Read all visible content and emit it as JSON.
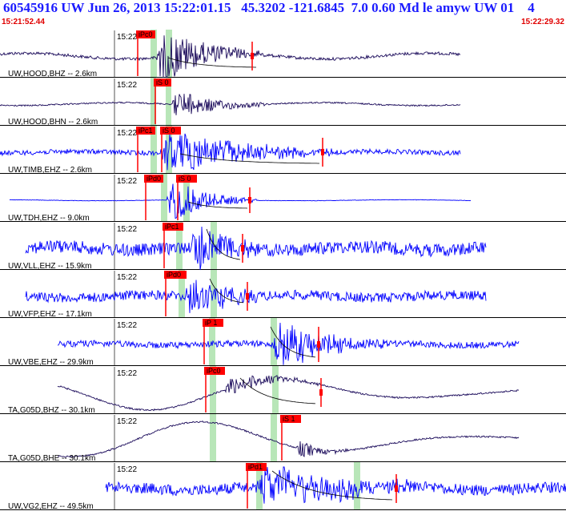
{
  "header": {
    "title": "60545916 UW Jun 26, 2013 15:22:01.15   45.3202 -121.6845  7.0 0.60 Md le amyw UW 01    4",
    "start_time": "15:21:52.44",
    "end_time": "15:22:29.32"
  },
  "colors": {
    "title": "#1a1aff",
    "time": "#e00000",
    "trace_blue": "#0000ff",
    "trace_navy": "#1a0a5a",
    "pick_box": "#ff0000",
    "window": "#b8e6b8"
  },
  "traces": [
    {
      "time_label": "15:22",
      "station_label": "UW,HOOD,BHZ -- 2.6km",
      "color": "navy",
      "picks": [
        {
          "text": "iPc0"
        }
      ]
    },
    {
      "time_label": "15:22",
      "station_label": "UW,HOOD,BHN -- 2.6km",
      "color": "navy",
      "picks": [
        {
          "text": "iS 0"
        }
      ]
    },
    {
      "time_label": "15:22",
      "station_label": "UW,TIMB,EHZ -- 2.6km",
      "color": "blue",
      "picks": [
        {
          "text": "iPc1"
        },
        {
          "text": "iS 0"
        }
      ]
    },
    {
      "time_label": "15:22",
      "station_label": "UW,TDH,EHZ -- 9.0km",
      "color": "blue",
      "picks": [
        {
          "text": "iPd0"
        },
        {
          "text": "iS 0"
        }
      ]
    },
    {
      "time_label": "15:22",
      "station_label": "UW,VLL,EHZ -- 15.9km",
      "color": "blue",
      "picks": [
        {
          "text": "iPc1"
        }
      ]
    },
    {
      "time_label": "15:22",
      "station_label": "UW,VFP,EHZ -- 17.1km",
      "color": "blue",
      "picks": [
        {
          "text": "iPd0"
        }
      ]
    },
    {
      "time_label": "15:22",
      "station_label": "UW,VBE,EHZ -- 29.9km",
      "color": "blue",
      "picks": [
        {
          "text": "iP 1"
        }
      ]
    },
    {
      "time_label": "15:22",
      "station_label": "TA,G05D,BHZ -- 30.1km",
      "color": "navy",
      "picks": [
        {
          "text": "iPc0"
        }
      ]
    },
    {
      "time_label": "15:22",
      "station_label": "TA,G05D,BHE -- 30.1km",
      "color": "navy",
      "picks": [
        {
          "text": "iS 1"
        }
      ]
    },
    {
      "time_label": "15:22",
      "station_label": "UW,VG2,EHZ -- 49.5km",
      "color": "blue",
      "picks": [
        {
          "text": "iPd1"
        }
      ]
    }
  ]
}
